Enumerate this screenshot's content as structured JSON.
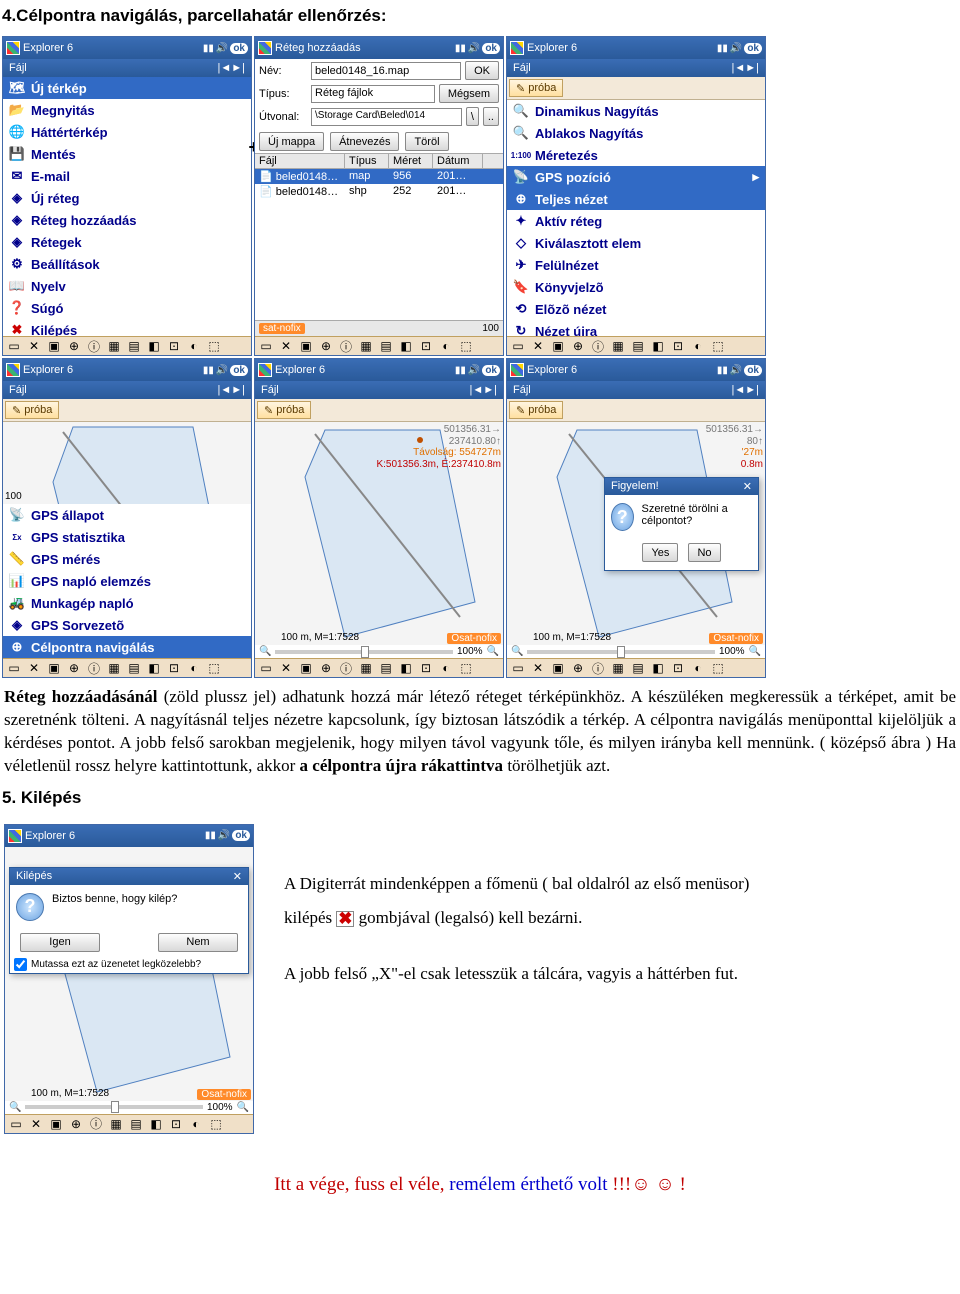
{
  "heading1": "4.Célpontra navigálás, parcellahatár ellenőrzés:",
  "taskbar_title_exp": "Explorer 6",
  "taskbar_title_layer": "Réteg hozzáadás",
  "menubar_left": "Fájl",
  "menubar_right": "|◄►|",
  "pda_menu": {
    "items": [
      {
        "icon": "🗺",
        "label": "Új térkép",
        "sel": true
      },
      {
        "icon": "📂",
        "label": "Megnyitás"
      },
      {
        "icon": "🌐",
        "label": "Háttértérkép"
      },
      {
        "icon": "💾",
        "label": "Mentés"
      },
      {
        "icon": "✉",
        "label": "E-mail"
      },
      {
        "icon": "◈",
        "label": "Új réteg"
      },
      {
        "icon": "◈",
        "label": "Réteg hozzáadás"
      },
      {
        "icon": "◈",
        "label": "Rétegek"
      },
      {
        "icon": "⚙",
        "label": "Beállítások"
      },
      {
        "icon": "📖",
        "label": "Nyelv"
      },
      {
        "icon": "❓",
        "label": "Súgó"
      },
      {
        "icon": "✖",
        "label": "Kilépés",
        "red": true
      }
    ]
  },
  "file_dlg": {
    "name_lbl": "Név:",
    "name_val": "beled0148_16.map",
    "ok": "OK",
    "type_lbl": "Típus:",
    "type_val": "Réteg fájlok",
    "cancel": "Mégsem",
    "path_lbl": "Útvonal:",
    "path_val": "\\Storage Card\\Beled\\014",
    "up": "\\",
    "dots": "..",
    "newf": "Új mappa",
    "ren": "Átnevezés",
    "del": "Töröl",
    "cols": [
      "Fájl",
      "Típus",
      "Méret",
      "Dátum"
    ],
    "rows": [
      {
        "f": "beled0148…",
        "t": "map",
        "s": "956",
        "d": "201…",
        "sel": true
      },
      {
        "f": "beled0148…",
        "t": "shp",
        "s": "252",
        "d": "201…"
      }
    ],
    "sat": "sat-nofix",
    "scale": "100"
  },
  "view_menu": {
    "proba": "próba",
    "items": [
      {
        "icon": "🔍",
        "label": "Dinamikus Nagyítás"
      },
      {
        "icon": "🔍",
        "label": "Ablakos Nagyítás"
      },
      {
        "icon": "1:100",
        "label": "Méretezés",
        "small": true
      },
      {
        "icon": "📡",
        "label": "GPS pozíció",
        "sel": true,
        "arrow": true
      },
      {
        "icon": "⊕",
        "label": "Teljes nézet",
        "sel": true
      },
      {
        "icon": "✦",
        "label": "Aktív réteg"
      },
      {
        "icon": "◇",
        "label": "Kiválasztott elem"
      },
      {
        "icon": "✈",
        "label": "Felülnézet"
      },
      {
        "icon": "🔖",
        "label": "Könyvjelzõ"
      },
      {
        "icon": "⟲",
        "label": "Elõzõ nézet"
      },
      {
        "icon": "↻",
        "label": "Nézet újra"
      }
    ]
  },
  "gps_menu": {
    "proba": "próba",
    "items": [
      {
        "icon": "📡",
        "label": "GPS állapot"
      },
      {
        "icon": "Σx",
        "label": "GPS statisztika",
        "small": true
      },
      {
        "icon": "📏",
        "label": "GPS mérés"
      },
      {
        "icon": "📊",
        "label": "GPS napló elemzés"
      },
      {
        "icon": "🚜",
        "label": "Munkagép napló"
      },
      {
        "icon": "◈",
        "label": "GPS Sorvezetõ"
      },
      {
        "icon": "⊕",
        "label": "Célpontra navigálás",
        "sel": true
      }
    ],
    "scale": "100"
  },
  "map_mid": {
    "proba": "próba",
    "coords": {
      "x": "501356.31→",
      "y": "237410.80↑"
    },
    "dist": "Távolság: 554727m",
    "ke": "K:501356.3m, É:237410.8m",
    "scale": "100 m, M=1:7528",
    "sat": "Osat-nofix",
    "zoom": "100%"
  },
  "map_right": {
    "proba": "próba",
    "popup_title": "Figyelem!",
    "popup_text": "Szeretné törölni a célpontot?",
    "yes": "Yes",
    "no": "No",
    "coords_partial": {
      "x": "501356.31→",
      "y2": "80↑",
      "y3": "'27m",
      "y4": "0.8m"
    },
    "scale": "100 m, M=1:7528",
    "sat": "Osat-nofix",
    "zoom": "100%"
  },
  "para1": "Réteg hozzáadásánál (zöld plussz jel) adhatunk hozzá már létező réteget térképünkhöz. A készüléken megkeressük a térképet, amit be szeretnénk tölteni. A nagyításnál teljes nézetre kapcsolunk, így biztosan látszódik a térkép. A célpontra navigálás menüponttal kijelöljük a kérdéses pontot. A jobb felső sarokban megjelenik, hogy milyen távol vagyunk tőle, és milyen irányba kell mennünk. ( középső ábra ) Ha véletlenül rossz helyre kattintottunk, akkor ",
  "para1b": "a célpontra újra rákattintva",
  "para1c": " törölhetjük azt.",
  "heading5": "5. Kilépés",
  "exit_dlg": {
    "title": "Kilépés",
    "q": "Biztos benne, hogy kilép?",
    "yes": "Igen",
    "no": "Nem",
    "chk": "Mutassa ezt az üzenetet legközelebb?",
    "scale": "100 m, M=1:7528",
    "sat": "Osat-nofix",
    "zoom": "100%"
  },
  "right_text1a": "A Digiterrát mindenképpen a főmenü ( bal oldalról az első menüsor)",
  "right_text1b": "kilépés ",
  "right_text1c": " gombjával (legalsó) kell bezárni.",
  "right_text2": "A jobb felső „X\"-el csak letesszük a tálcára, vagyis a háttérben fut.",
  "final_a": "Itt a vége, fuss el véle, ",
  "final_b": "remélem érthető volt ",
  "final_c": "!!!☺ ☺ !",
  "colors": {
    "sel": "#316ac5",
    "orange": "#ff8a2a",
    "taskbar": "#2a5a9a"
  }
}
